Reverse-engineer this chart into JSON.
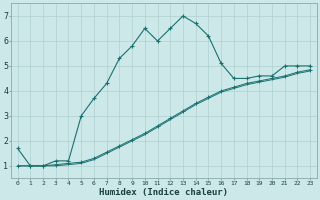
{
  "xlabel": "Humidex (Indice chaleur)",
  "background_color": "#cce8e8",
  "grid_color_major": "#b0d0d0",
  "grid_color_minor": "#c4dede",
  "line_color": "#1a7070",
  "xlim": [
    -0.5,
    23.5
  ],
  "ylim": [
    0.5,
    7.5
  ],
  "xticks": [
    0,
    1,
    2,
    3,
    4,
    5,
    6,
    7,
    8,
    9,
    10,
    11,
    12,
    13,
    14,
    15,
    16,
    17,
    18,
    19,
    20,
    21,
    22,
    23
  ],
  "yticks": [
    1,
    2,
    3,
    4,
    5,
    6,
    7
  ],
  "line1_x": [
    0,
    1,
    2,
    3,
    4,
    5,
    6,
    7,
    8,
    9,
    10,
    11,
    12,
    13,
    14,
    15,
    16,
    17,
    18,
    19,
    20,
    21,
    22,
    23
  ],
  "line1_y": [
    1.7,
    1.0,
    1.0,
    1.2,
    1.2,
    3.0,
    3.7,
    4.3,
    5.3,
    5.8,
    6.5,
    6.0,
    6.5,
    7.0,
    6.7,
    6.2,
    5.1,
    4.5,
    4.5,
    4.6,
    4.6,
    5.0,
    5.0,
    5.0
  ],
  "line2_x": [
    0,
    1,
    2,
    3,
    4,
    5,
    6,
    7,
    8,
    9,
    10,
    11,
    12,
    13,
    14,
    15,
    16,
    17,
    18,
    19,
    20,
    21,
    22,
    23
  ],
  "line2_y": [
    1.0,
    1.0,
    1.0,
    1.05,
    1.1,
    1.15,
    1.3,
    1.55,
    1.8,
    2.05,
    2.3,
    2.6,
    2.9,
    3.2,
    3.5,
    3.75,
    4.0,
    4.15,
    4.3,
    4.4,
    4.5,
    4.6,
    4.75,
    4.85
  ],
  "line3_x": [
    0,
    1,
    2,
    3,
    4,
    5,
    6,
    7,
    8,
    9,
    10,
    11,
    12,
    13,
    14,
    15,
    16,
    17,
    18,
    19,
    20,
    21,
    22,
    23
  ],
  "line3_y": [
    1.0,
    1.0,
    1.0,
    1.0,
    1.05,
    1.1,
    1.25,
    1.5,
    1.75,
    2.0,
    2.25,
    2.55,
    2.85,
    3.15,
    3.45,
    3.7,
    3.95,
    4.1,
    4.25,
    4.35,
    4.45,
    4.55,
    4.7,
    4.8
  ]
}
